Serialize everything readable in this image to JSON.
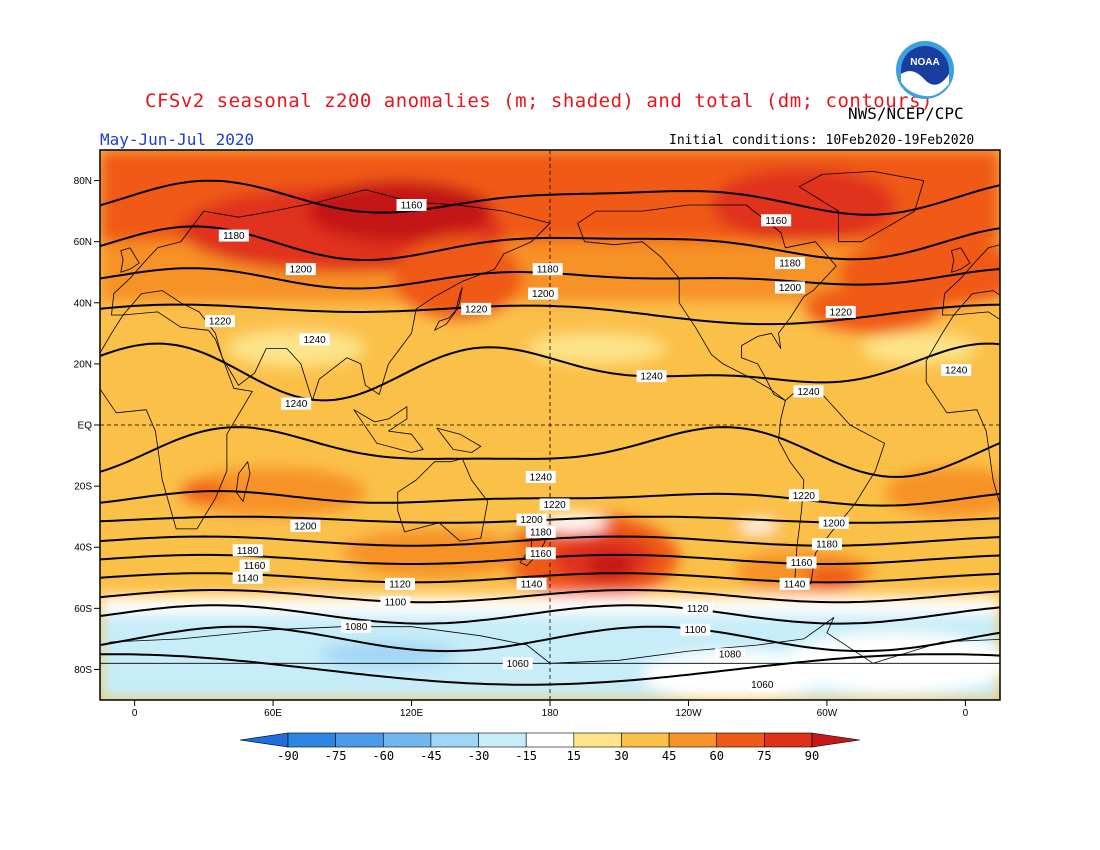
{
  "title": "CFSv2 seasonal z200 anomalies (m; shaded) and total (dm; contours)",
  "agency": "NWS/NCEP/CPC",
  "period": "May-Jun-Jul 2020",
  "initial_conditions": "Initial conditions: 10Feb2020-19Feb2020",
  "logo_text": "NOAA",
  "lat_labels": [
    "80N",
    "60N",
    "40N",
    "20N",
    "EQ",
    "20S",
    "40S",
    "60S",
    "80S"
  ],
  "lon_labels": [
    "0",
    "60E",
    "120E",
    "180",
    "120W",
    "60W",
    "0"
  ],
  "colorbar": {
    "labels": [
      "-90",
      "-75",
      "-60",
      "-45",
      "-30",
      "-15",
      "15",
      "30",
      "45",
      "60",
      "75",
      "90"
    ],
    "colors": [
      "#1c6fdc",
      "#2b85e4",
      "#4a9bea",
      "#72b6ef",
      "#a0d6f5",
      "#c6edf8",
      "#ffffff",
      "#fde48a",
      "#fbc048",
      "#f79228",
      "#f05a18",
      "#e0301a",
      "#c41818"
    ]
  },
  "contour_labels": [
    {
      "text": "1160",
      "lon": 120,
      "lat": 72
    },
    {
      "text": "1180",
      "lon": 43,
      "lat": 62
    },
    {
      "text": "1200",
      "lon": 72,
      "lat": 51
    },
    {
      "text": "1220",
      "lon": 37,
      "lat": 34
    },
    {
      "text": "1240",
      "lon": 78,
      "lat": 28
    },
    {
      "text": "1240",
      "lon": 70,
      "lat": 7
    },
    {
      "text": "1180",
      "lon": 179,
      "lat": 51
    },
    {
      "text": "1200",
      "lon": 177,
      "lat": 43
    },
    {
      "text": "1220",
      "lon": 148,
      "lat": 38
    },
    {
      "text": "1160",
      "lon": 278,
      "lat": 67
    },
    {
      "text": "1180",
      "lon": 284,
      "lat": 53
    },
    {
      "text": "1200",
      "lon": 284,
      "lat": 45
    },
    {
      "text": "1220",
      "lon": 306,
      "lat": 37
    },
    {
      "text": "1240",
      "lon": 224,
      "lat": 16
    },
    {
      "text": "1240",
      "lon": 292,
      "lat": 11
    },
    {
      "text": "1240",
      "lon": 356,
      "lat": 18
    },
    {
      "text": "1240",
      "lon": 176,
      "lat": -17
    },
    {
      "text": "1220",
      "lon": 182,
      "lat": -26
    },
    {
      "text": "1200",
      "lon": 172,
      "lat": -31
    },
    {
      "text": "1180",
      "lon": 176,
      "lat": -35
    },
    {
      "text": "1160",
      "lon": 176,
      "lat": -42
    },
    {
      "text": "1140",
      "lon": 172,
      "lat": -52
    },
    {
      "text": "1220",
      "lon": 290,
      "lat": -23
    },
    {
      "text": "1200",
      "lon": 303,
      "lat": -32
    },
    {
      "text": "1180",
      "lon": 300,
      "lat": -39
    },
    {
      "text": "1160",
      "lon": 289,
      "lat": -45
    },
    {
      "text": "1140",
      "lon": 286,
      "lat": -52
    },
    {
      "text": "1200",
      "lon": 74,
      "lat": -33
    },
    {
      "text": "1180",
      "lon": 49,
      "lat": -41
    },
    {
      "text": "1160",
      "lon": 52,
      "lat": -46
    },
    {
      "text": "1140",
      "lon": 49,
      "lat": -50
    },
    {
      "text": "1120",
      "lon": 115,
      "lat": -52
    },
    {
      "text": "1100",
      "lon": 113,
      "lat": -58
    },
    {
      "text": "1080",
      "lon": 96,
      "lat": -66
    },
    {
      "text": "1120",
      "lon": 244,
      "lat": -60
    },
    {
      "text": "1100",
      "lon": 243,
      "lat": -67
    },
    {
      "text": "1080",
      "lon": 258,
      "lat": -75
    },
    {
      "text": "1060",
      "lon": 166,
      "lat": -78
    },
    {
      "text": "1060",
      "lon": 272,
      "lat": -85
    }
  ]
}
